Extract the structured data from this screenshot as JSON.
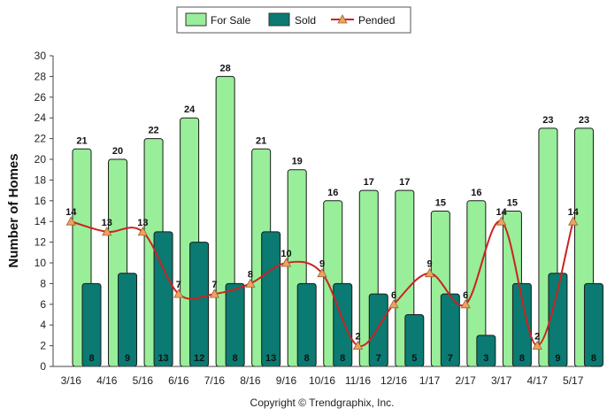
{
  "chart_data": {
    "type": "bar",
    "title": "",
    "xlabel": "",
    "ylabel": "Number of Homes",
    "ylim": [
      0,
      30
    ],
    "yticks": [
      0,
      2,
      4,
      6,
      8,
      10,
      12,
      14,
      16,
      18,
      20,
      22,
      24,
      26,
      28,
      30
    ],
    "categories": [
      "3/16",
      "4/16",
      "5/16",
      "6/16",
      "7/16",
      "8/16",
      "9/16",
      "10/16",
      "11/16",
      "12/16",
      "1/17",
      "2/17",
      "3/17",
      "4/17",
      "5/17"
    ],
    "series": [
      {
        "name": "For Sale",
        "kind": "bar",
        "color": "#99ee99",
        "values": [
          21,
          20,
          22,
          24,
          28,
          21,
          19,
          16,
          17,
          17,
          15,
          16,
          15,
          23,
          23
        ]
      },
      {
        "name": "Sold",
        "kind": "bar",
        "color": "#0a7a72",
        "values": [
          8,
          9,
          13,
          12,
          8,
          13,
          8,
          8,
          7,
          5,
          7,
          3,
          8,
          9,
          8
        ]
      },
      {
        "name": "Pended",
        "kind": "line",
        "color": "#cc2222",
        "marker_color": "#f0a060",
        "values": [
          14,
          13,
          13,
          7,
          7,
          8,
          10,
          9,
          2,
          6,
          9,
          6,
          14,
          2,
          14
        ]
      }
    ],
    "legend_position": "top-center",
    "grid": false
  },
  "copyright": "Copyright © Trendgraphix, Inc."
}
